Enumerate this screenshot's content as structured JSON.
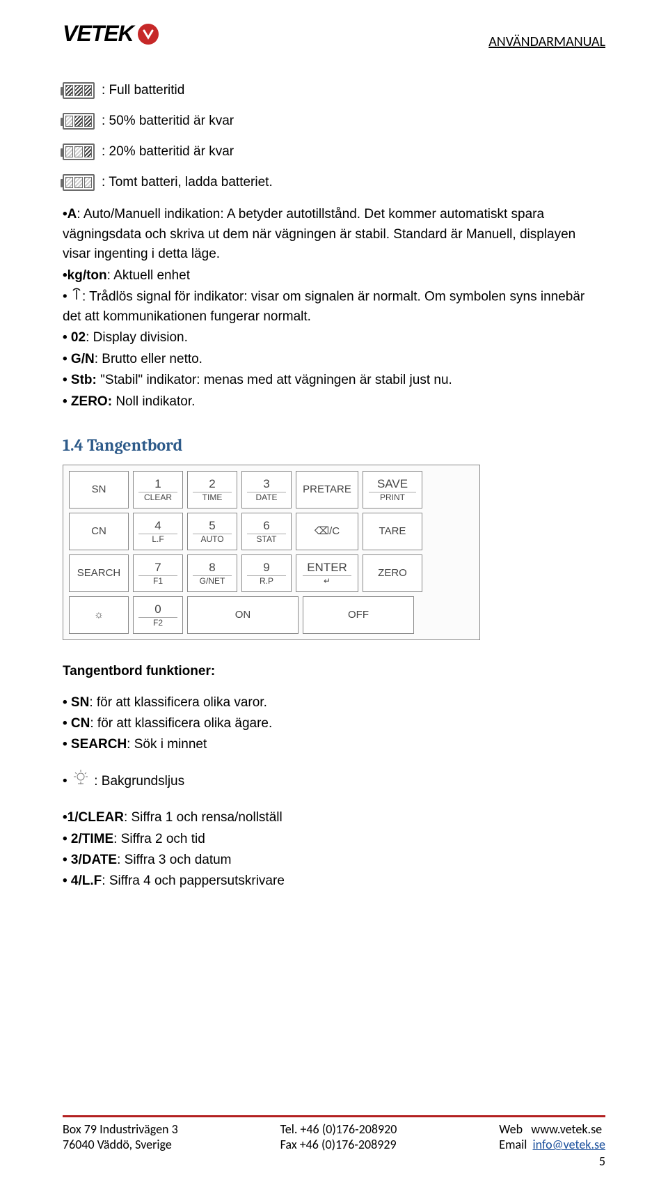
{
  "header": {
    "logo_text": "VETEK",
    "doc_title": "ANVÄNDARMANUAL"
  },
  "battery": [
    {
      "fill": 3,
      "text": ": Full batteritid"
    },
    {
      "fill": 2,
      "text": ": 50% batteritid är kvar"
    },
    {
      "fill": 1,
      "text": ": 20% batteritid är kvar"
    },
    {
      "fill": 0,
      "text": ": Tomt batteri, ladda batteriet."
    }
  ],
  "indicators": {
    "a_bold": "•A",
    "a_rest": ": Auto/Manuell indikation: A betyder autotillstånd. Det kommer automatiskt spara vägningsdata och skriva ut dem när vägningen är stabil. Standard är Manuell, displayen visar ingenting i detta läge.",
    "kg_bold": "•kg/ton",
    "kg_rest": ": Aktuell enhet",
    "sig_prefix": "• ",
    "sig_rest": ": Trådlös signal för indikator: visar om signalen är normalt. Om symbolen syns innebär det att kommunikationen fungerar normalt.",
    "d02_bold": "• 02",
    "d02_rest": ": Display division.",
    "gn_bold": "• G/N",
    "gn_rest": ": Brutto eller netto.",
    "stb_bold": "• Stb:",
    "stb_rest": " \"Stabil\" indikator: menas med att vägningen är stabil just nu.",
    "zero_bold": "• ZERO:",
    "zero_rest": " Noll indikator."
  },
  "section_title": "1.4 Tangentbord",
  "keypad": {
    "rows": [
      [
        {
          "w": "w-side",
          "top": "SN",
          "bot": ""
        },
        {
          "w": "w-num",
          "top": "1",
          "bot": "CLEAR"
        },
        {
          "w": "w-num",
          "top": "2",
          "bot": "TIME"
        },
        {
          "w": "w-num",
          "top": "3",
          "bot": "DATE"
        },
        {
          "w": "w-mid",
          "top": "PRETARE",
          "bot": ""
        },
        {
          "w": "w-right",
          "top": "SAVE",
          "bot": "PRINT"
        }
      ],
      [
        {
          "w": "w-side",
          "top": "CN",
          "bot": ""
        },
        {
          "w": "w-num",
          "top": "4",
          "bot": "L.F"
        },
        {
          "w": "w-num",
          "top": "5",
          "bot": "AUTO"
        },
        {
          "w": "w-num",
          "top": "6",
          "bot": "STAT"
        },
        {
          "w": "w-mid",
          "top": "⌫/C",
          "bot": ""
        },
        {
          "w": "w-right",
          "top": "TARE",
          "bot": ""
        }
      ],
      [
        {
          "w": "w-side",
          "top": "SEARCH",
          "bot": ""
        },
        {
          "w": "w-num",
          "top": "7",
          "bot": "F1"
        },
        {
          "w": "w-num",
          "top": "8",
          "bot": "G/NET"
        },
        {
          "w": "w-num",
          "top": "9",
          "bot": "R.P"
        },
        {
          "w": "w-mid",
          "top": "ENTER",
          "bot": "↵"
        },
        {
          "w": "w-right",
          "top": "ZERO",
          "bot": ""
        }
      ],
      [
        {
          "w": "w-side",
          "top": "☼",
          "bot": ""
        },
        {
          "w": "w-num",
          "top": "0",
          "bot": "F2"
        },
        {
          "w": "w-last",
          "top": "ON",
          "bot": ""
        },
        {
          "w": "w-last",
          "top": "OFF",
          "bot": ""
        }
      ]
    ]
  },
  "funcs": {
    "heading": "Tangentbord funktioner:",
    "sn_b": "• SN",
    "sn_r": ": för att klassificera olika varor.",
    "cn_b": "• CN",
    "cn_r": ": för att klassificera olika ägare.",
    "search_b": "• SEARCH",
    "search_r": ": Sök i minnet",
    "light_r": ": Bakgrundsljus",
    "l1_b": "•1/CLEAR",
    "l1_r": ": Siffra 1 och rensa/nollställ",
    "l2_b": "• 2/TIME",
    "l2_r": ": Siffra 2 och tid",
    "l3_b": "• 3/DATE",
    "l3_r": ": Siffra 3 och datum",
    "l4_b": "• 4/L.F",
    "l4_r": ": Siffra 4 och pappersutskrivare"
  },
  "footer": {
    "addr1": "Box 79 Industrivägen 3",
    "addr2": "76040 Väddö, Sverige",
    "tel": "Tel. +46 (0)176-208920",
    "fax": "Fax +46 (0)176-208929",
    "web_label": "Web",
    "web_url": "www.vetek.se",
    "email_label": "Email",
    "email_url": "info@vetek.se",
    "page": "5"
  },
  "colors": {
    "brand_red": "#c62828",
    "section_blue": "#2e5b8a",
    "link_blue": "#1a4f9c",
    "footer_red": "#b32020",
    "key_border": "#888888"
  }
}
